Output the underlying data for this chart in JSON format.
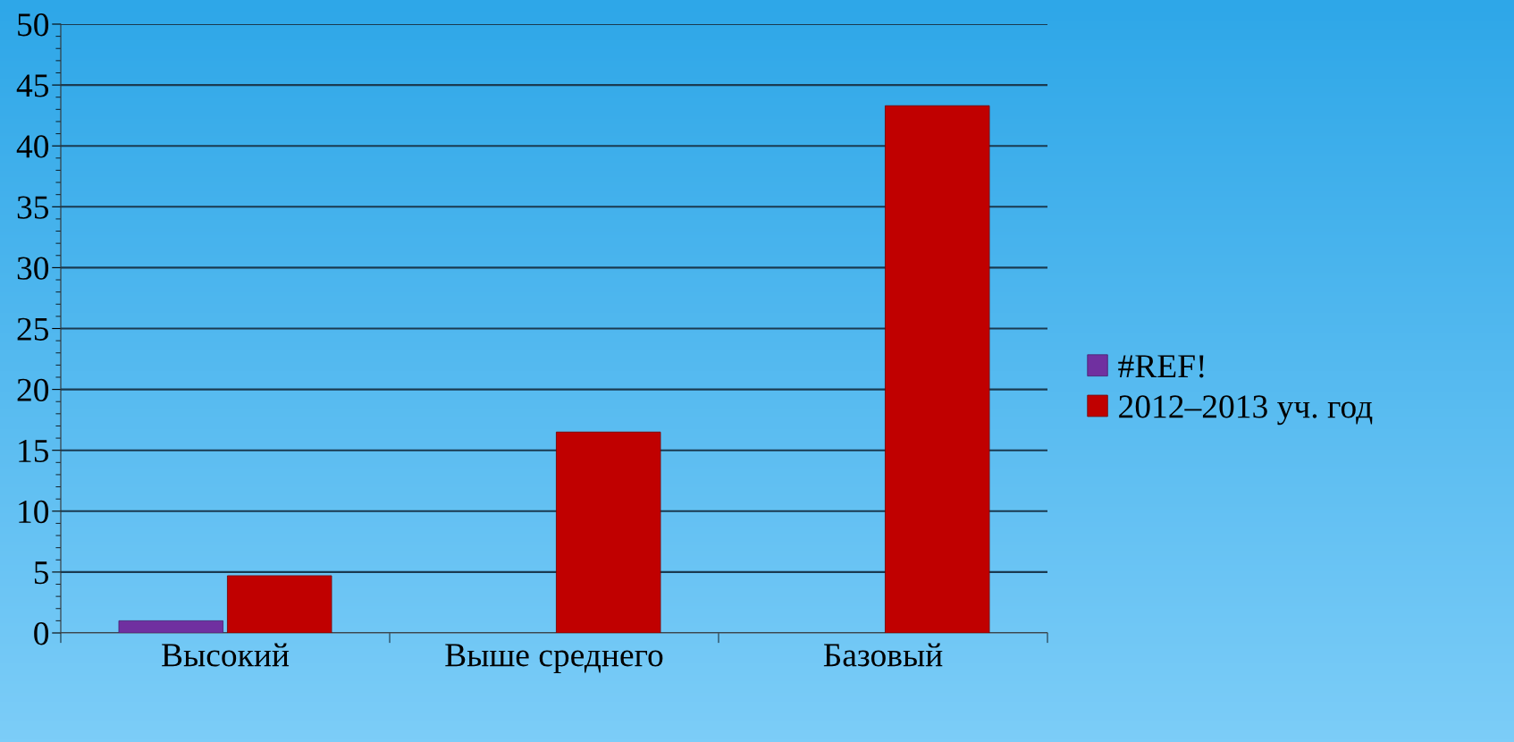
{
  "chart_data": {
    "type": "bar",
    "categories": [
      "Высокий",
      "Выше среднего",
      "Базовый"
    ],
    "series": [
      {
        "name": "#REF!",
        "color": "#7030a0",
        "values": [
          1.0,
          null,
          null
        ]
      },
      {
        "name": "2012–2013 уч. год",
        "color": "#c00000",
        "values": [
          4.7,
          16.5,
          43.3
        ]
      }
    ],
    "ylim": [
      0,
      50
    ],
    "yticks": [
      0,
      5,
      10,
      15,
      20,
      25,
      30,
      35,
      40,
      45,
      50
    ],
    "grid": "y",
    "legend": "right"
  }
}
